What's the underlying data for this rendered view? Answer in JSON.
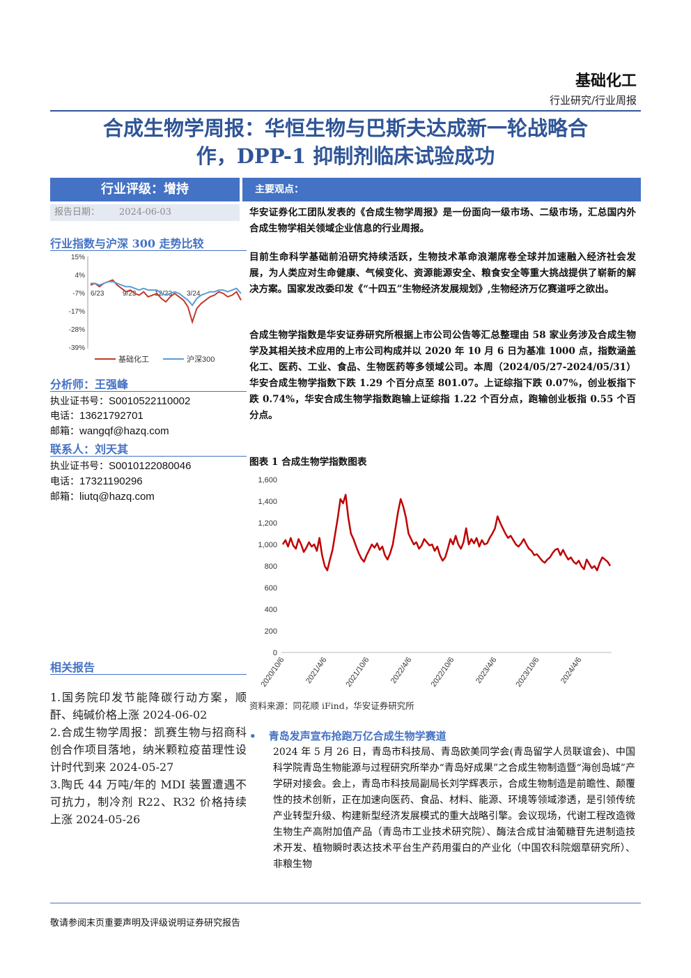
{
  "header": {
    "sector": "基础化工",
    "sub_sector": "行业研究/行业周报"
  },
  "title": {
    "line1": "合成生物学周报：华恒生物与巴斯夫达成新一轮战略合",
    "line2": "作，DPP-1 抑制剂临床试验成功"
  },
  "sidebar": {
    "rating": "行业评级：增持",
    "report_date_label": "报告日期：",
    "report_date": "2024-06-03",
    "index_chart_title": "行业指数与沪深 300 走势比较",
    "analyst_heading": "分析师：王强峰",
    "analyst": {
      "license_label": "执业证书号：",
      "license": "S0010522110002",
      "phone_label": "电话：",
      "phone": "13621792701",
      "email_label": "邮箱：",
      "email": "wangqf@hazq.com"
    },
    "contact_heading": "联系人：刘天其",
    "contact": {
      "license_label": "执业证书号：",
      "license": "S0010122080046",
      "phone_label": "电话：",
      "phone": "17321190296",
      "email_label": "邮箱：",
      "email": "liutq@hazq.com"
    },
    "related_heading": "相关报告",
    "related": [
      "1.国务院印发节能降碳行动方案，顺酐、纯碱价格上涨 2024-06-02",
      "2.合成生物学周报：凯赛生物与招商科创合作项目落地，纳米颗粒疫苗理性设计时代到来 2024-05-27",
      "3.陶氏 44 万吨/年的 MDI 装置遭遇不可抗力，制冷剂 R22、R32 价格持续上涨 2024-05-26"
    ]
  },
  "main": {
    "views_heading": "主要观点：",
    "p1": "华安证券化工团队发表的《合成生物学周报》是一份面向一级市场、二级市场，汇总国内外合成生物学相关领域企业信息的行业周报。",
    "p2": "目前生命科学基础前沿研究持续活跃，生物技术革命浪潮席卷全球并加速融入经济社会发展，为人类应对生命健康、气候变化、资源能源安全、粮食安全等重大挑战提供了崭新的解决方案。国家发改委印发《“十四五”生物经济发展规划》,生物经济万亿赛道呼之欲出。",
    "p3": "合成生物学指数是华安证券研究所根据上市公司公告等汇总整理由 58 家业务涉及合成生物学及其相关技术应用的上市公司构成并以 2020 年 10 月 6 日为基准 1000 点，指数涵盖化工、医药、工业、食品、生物医药等多领域公司。本周（2024/05/27-2024/05/31）华安合成生物学指数下跌 1.29 个百分点至 801.07。上证综指下跌 0.07%，创业板指下跌 0.74%，华安合成生物学指数跑输上证综指 1.22 个百分点，跑输创业板指 0.55 个百分点。",
    "figure_title": "图表 1 合成生物学指数图表",
    "source": "资料来源：同花顺 iFind，华安证券研究所",
    "news_heading": "青岛发声宣布抢跑万亿合成生物学赛道",
    "news_body": "2024 年 5 月 26 日，青岛市科技局、青岛欧美同学会(青岛留学人员联谊会)、中国科学院青岛生物能源与过程研究所举办“青岛好成果”之合成生物制造暨“海创岛城”产学研对接会。会上，青岛市科技局副局长刘学辉表示，合成生物制造是前瞻性、颠覆性的技术创新，正在加速向医药、食品、材料、能源、环境等领域渗透，是引领传统产业转型升级、构建新型经济发展模式的重大战略引擎。会议现场，代谢工程改造微生物生产高附加值产品（青岛市工业技术研究院）、酶法合成甘油葡糖苷先进制造技术开发、植物瞬时表达技术平台生产药用蛋白的产业化（中国农科院烟草研究所）、非粮生物"
  },
  "footer": "敬请参阅末页重要声明及评级说明证券研究报告",
  "colors": {
    "accent": "#4472c4",
    "title": "#2f5597",
    "basic_chem_line": "#c0392b",
    "hs300_line": "#5b9bd5",
    "synbio_line": "#c00000"
  },
  "chart_data": [
    {
      "type": "line",
      "title": "",
      "x_ticks": [
        "6/23",
        "9/23",
        "12/23",
        "3/24"
      ],
      "y_ticks": [
        "15%",
        "4%",
        "-7%",
        "-17%",
        "-28%",
        "-39%"
      ],
      "ylim": [
        -39,
        15
      ],
      "legend_position": "bottom",
      "series": [
        {
          "name": "基础化工",
          "color": "#c0392b",
          "values": [
            -2,
            -1,
            -3,
            -1,
            0,
            1,
            -2,
            -4,
            -6,
            -5,
            -7,
            -8,
            -6,
            -9,
            -8,
            -7,
            -10,
            -12,
            -9,
            -7,
            -9,
            -11,
            -15,
            -24,
            -16,
            -13,
            -11,
            -9,
            -8,
            -6,
            -7,
            -9,
            -8,
            -6,
            -11
          ]
        },
        {
          "name": "沪深300",
          "color": "#5b9bd5",
          "values": [
            -1,
            -1,
            -2,
            -1,
            0,
            0,
            -1,
            -2,
            -3,
            -3,
            -4,
            -5,
            -4,
            -5,
            -5,
            -5,
            -7,
            -8,
            -7,
            -6,
            -7,
            -9,
            -11,
            -14,
            -10,
            -8,
            -7,
            -6,
            -6,
            -5,
            -5,
            -6,
            -5,
            -4,
            -7
          ]
        }
      ]
    },
    {
      "type": "line",
      "title": "",
      "x_ticks": [
        "2020/10/6",
        "2021/4/6",
        "2021/10/6",
        "2022/4/6",
        "2022/10/6",
        "2023/4/6",
        "2023/10/6",
        "2024/4/6"
      ],
      "y_ticks": [
        "0",
        "200",
        "400",
        "600",
        "800",
        "1,000",
        "1,200",
        "1,400",
        "1,600"
      ],
      "ylim": [
        0,
        1600
      ],
      "series": [
        {
          "name": "",
          "color": "#c00000",
          "values": [
            1000,
            1040,
            980,
            1060,
            990,
            960,
            1050,
            1000,
            930,
            970,
            1020,
            980,
            1000,
            940,
            1060,
            900,
            800,
            760,
            860,
            950,
            1100,
            1250,
            1420,
            1380,
            1460,
            1250,
            1100,
            1050,
            980,
            920,
            870,
            840,
            900,
            950,
            1000,
            970,
            1010,
            950,
            980,
            900,
            860,
            920,
            1000,
            1150,
            1300,
            1420,
            1350,
            1250,
            1100,
            1050,
            1000,
            1020,
            960,
            990,
            1050,
            1020,
            990,
            1000,
            940,
            980,
            900,
            850,
            880,
            960,
            1050,
            1000,
            1080,
            1000,
            960,
            1020,
            1150,
            1000,
            1050,
            1010,
            1060,
            980,
            1040,
            1000,
            1010,
            1060,
            1100,
            1150,
            1260,
            1200,
            1150,
            1100,
            1060,
            1080,
            1040,
            1000,
            980,
            1010,
            1050,
            1000,
            960,
            940,
            900,
            910,
            880,
            850,
            830,
            860,
            880,
            920,
            950,
            960,
            900,
            950,
            900,
            860,
            880,
            840,
            820,
            850,
            800,
            770,
            860,
            820,
            780,
            800,
            760,
            830,
            880,
            860,
            840,
            801
          ]
        }
      ]
    }
  ]
}
